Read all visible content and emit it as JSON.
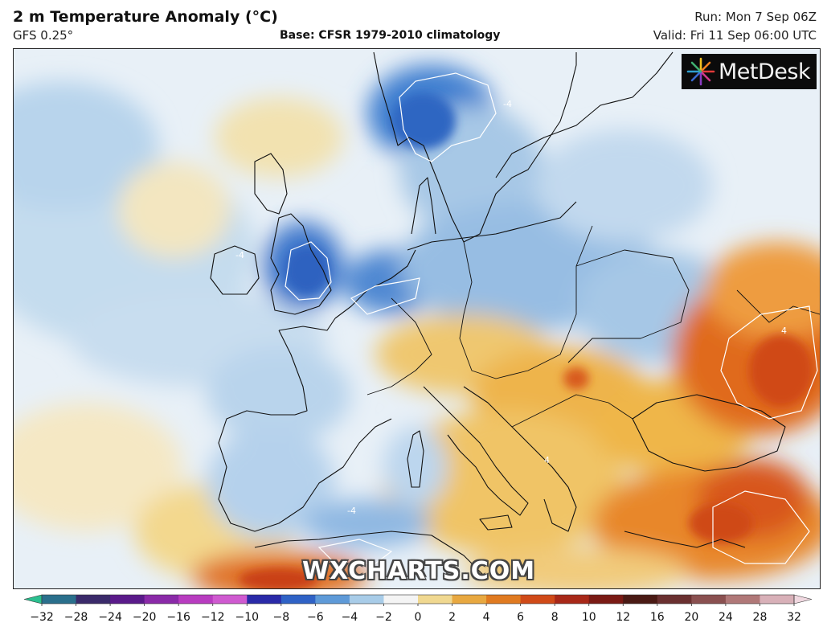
{
  "header": {
    "title": "2 m Temperature Anomaly (°C)",
    "model": "GFS 0.25°",
    "base": "Base: CFSR 1979-2010 climatology",
    "run": "Run: Mon 7 Sep 06Z",
    "valid": "Valid: Fri 11 Sep 06:00 UTC"
  },
  "logo": {
    "text": "MetDesk"
  },
  "watermark": "WXCHARTS.COM",
  "map": {
    "region": "Europe",
    "contour_label": "4",
    "contour_label_neg": "-4"
  },
  "legend": {
    "ticks": [
      "−32",
      "−28",
      "−24",
      "−20",
      "−16",
      "−12",
      "−10",
      "−8",
      "−6",
      "−4",
      "−2",
      "0",
      "2",
      "4",
      "6",
      "8",
      "10",
      "12",
      "16",
      "20",
      "24",
      "28",
      "32"
    ],
    "colors": [
      "#2bbf8f",
      "#2a6f8c",
      "#3a2a6a",
      "#5a1a8a",
      "#8a2aa8",
      "#b83cc0",
      "#cf5ad0",
      "#2a2aa8",
      "#2f62c6",
      "#5e9ad8",
      "#a8cce8",
      "#f4f4f4",
      "#f0d890",
      "#e8a840",
      "#e07a20",
      "#d04a18",
      "#a82818",
      "#7a1a14",
      "#4a1a14",
      "#6a3030",
      "#8a5050",
      "#b07878",
      "#d8b0b8",
      "#f0d8e0"
    ]
  }
}
